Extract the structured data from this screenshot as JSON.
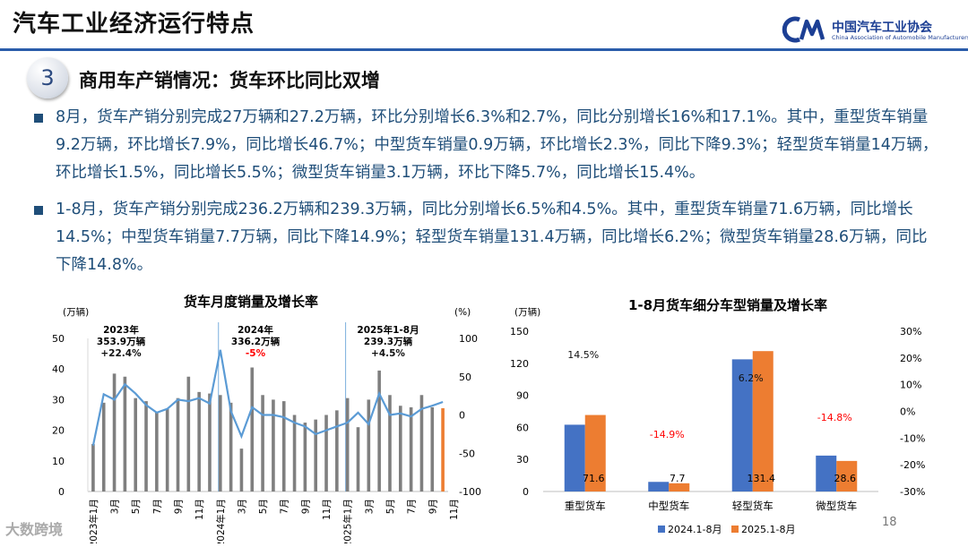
{
  "page": {
    "title": "汽车工业经济运行特点",
    "logo_cn": "中国汽车工业协会",
    "logo_en": "China Association of Automobile Manufacturers",
    "section_number": "3",
    "section_title": "商用车产销情况：货车环比同比双增",
    "paragraphs": [
      "8月，货车产销分别完成27万辆和27.2万辆，环比分别增长6.3%和2.7%，同比分别增长16%和17.1%。其中，重型货车销量9.2万辆，环比增长7.9%，同比增长46.7%；中型货车销量0.9万辆，环比增长2.3%，同比下降9.3%；轻型货车销量14万辆，环比增长1.5%，同比增长5.5%；微型货车销量3.1万辆，环比下降5.7%，同比增长15.4%。",
      "1-8月，货车产销分别完成236.2万辆和239.3万辆，同比分别增长6.5%和4.5%。其中，重型货车销量71.6万辆，同比增长14.5%；中型货车销量7.7万辆，同比下降14.9%；轻型货车销量131.4万辆，同比增长6.2%；微型货车销量28.6万辆，同比下降14.8%。"
    ],
    "page_number": "18",
    "brand": "大数跨境"
  },
  "colors": {
    "accent": "#2a5caa",
    "text_blue": "#1f4e79",
    "bar_gray": "#7f7f7f",
    "bar_orange": "#ed7d31",
    "line_blue": "#5b9bd5",
    "series_blue": "#4472c4",
    "negative_red": "#ff0000"
  },
  "chart_data": [
    {
      "type": "bar",
      "title": "货车月度销量及增长率",
      "ylabel_left": "(万辆)",
      "ylabel_right": "(%)",
      "ylim_left": [
        0,
        50
      ],
      "yticks_left": [
        "0",
        "10",
        "20",
        "30",
        "40",
        "50"
      ],
      "ylim_right": [
        -100,
        100
      ],
      "yticks_right": [
        "-100",
        "-50",
        "0",
        "50",
        "100"
      ],
      "x_tick_labels": [
        "2023年1月",
        "3月",
        "5月",
        "7月",
        "9月",
        "11月",
        "2024年1月",
        "3月",
        "5月",
        "7月",
        "9月",
        "11月",
        "2025年1月",
        "3月",
        "5月",
        "7月",
        "9月",
        "11月"
      ],
      "sales": [
        15.5,
        29,
        38.5,
        37.5,
        30.5,
        29.5,
        26,
        27,
        30.5,
        37.5,
        32.5,
        32,
        31.5,
        29,
        14,
        40.5,
        31.5,
        30,
        29.5,
        25,
        22.5,
        23.5,
        25,
        26.5,
        30.5,
        21,
        30,
        39.5,
        31.5,
        28,
        27.5,
        31.5,
        27.5,
        27.2
      ],
      "growth": [
        -40,
        27,
        20,
        40,
        28,
        13,
        3,
        8,
        20,
        18,
        22,
        15,
        85,
        5,
        -28,
        10,
        0,
        0,
        -3,
        -10,
        -15,
        -25,
        -20,
        -15,
        -10,
        3,
        -12,
        28,
        0,
        2,
        -2,
        8,
        12,
        17
      ],
      "annotations": [
        {
          "label": "2023年",
          "value": "353.9万辆",
          "growth": "+22.4%",
          "negative": false
        },
        {
          "label": "2024年",
          "value": "336.2万辆",
          "growth": "-5%",
          "negative": true
        },
        {
          "label": "2025年1-8月",
          "value": "239.3万辆",
          "growth": "+4.5%",
          "negative": false
        }
      ]
    },
    {
      "type": "bar",
      "title": "1-8月货车细分车型销量及增长率",
      "ylabel_left": "(万辆)",
      "ylim_left": [
        0,
        150
      ],
      "yticks_left": [
        "0",
        "30",
        "60",
        "90",
        "120",
        "150"
      ],
      "ylim_right": [
        -30,
        30
      ],
      "yticks_right": [
        "-30%",
        "-20%",
        "-10%",
        "0%",
        "10%",
        "20%",
        "30%"
      ],
      "categories": [
        "重型货车",
        "中型货车",
        "轻型货车",
        "微型货车"
      ],
      "series": [
        {
          "name": "2024.1-8月",
          "values": [
            62.5,
            9.0,
            123.7,
            33.6
          ]
        },
        {
          "name": "2025.1-8月",
          "values": [
            71.6,
            7.7,
            131.4,
            28.6
          ]
        }
      ],
      "value_labels": [
        "71.6",
        "7.7",
        "131.4",
        "28.6"
      ],
      "growth_rates": [
        14.5,
        -14.9,
        6.2,
        -14.8
      ],
      "growth_labels": [
        "14.5%",
        "-14.9%",
        "6.2%",
        "-14.8%"
      ]
    }
  ]
}
